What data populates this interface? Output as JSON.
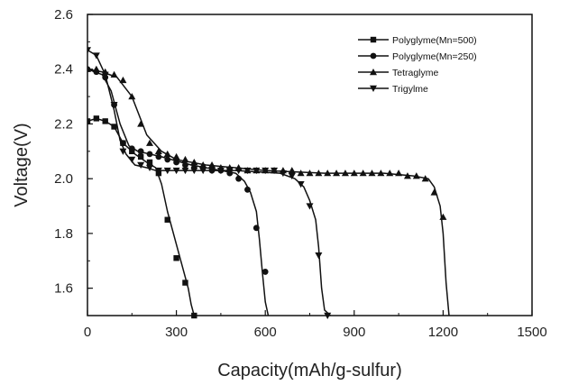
{
  "chart_data": {
    "type": "line",
    "xlabel": "Capacity(mAh/g-sulfur)",
    "ylabel": "Voltage(V)",
    "xlim": [
      0,
      1500
    ],
    "ylim": [
      1.5,
      2.6
    ],
    "x_ticks": [
      0,
      300,
      600,
      900,
      1200,
      1500
    ],
    "x_tick_labels": [
      "0",
      "300",
      "600",
      "900",
      "1200",
      "1500"
    ],
    "y_ticks": [
      1.6,
      1.8,
      2.0,
      2.2,
      2.4,
      2.6
    ],
    "y_tick_labels": [
      "1.6",
      "1.8",
      "2.0",
      "2.2",
      "2.4",
      "2.6"
    ],
    "grid": false,
    "legend_position": "top-right",
    "series": [
      {
        "name": "Polyglyme(Mn=500)",
        "marker": "square",
        "x": [
          0,
          30,
          60,
          90,
          120,
          160,
          200,
          230,
          250,
          270,
          300,
          320,
          340,
          350,
          360
        ],
        "y": [
          2.21,
          2.22,
          2.21,
          2.19,
          2.13,
          2.09,
          2.06,
          2.04,
          1.98,
          1.88,
          1.76,
          1.68,
          1.6,
          1.54,
          1.5
        ],
        "marker_x": [
          0,
          30,
          60,
          90,
          120,
          150,
          180,
          210,
          240,
          270,
          300,
          330,
          360
        ],
        "marker_y": [
          2.21,
          2.22,
          2.21,
          2.19,
          2.13,
          2.1,
          2.08,
          2.06,
          2.02,
          1.85,
          1.71,
          1.62,
          1.5
        ]
      },
      {
        "name": "Polyglyme(Mn=250)",
        "marker": "circle",
        "x": [
          0,
          50,
          80,
          110,
          140,
          170,
          250,
          350,
          450,
          500,
          530,
          550,
          570,
          580,
          590,
          600,
          610
        ],
        "y": [
          2.4,
          2.38,
          2.32,
          2.2,
          2.12,
          2.1,
          2.08,
          2.05,
          2.03,
          2.02,
          1.99,
          1.95,
          1.88,
          1.78,
          1.66,
          1.55,
          1.5
        ],
        "marker_x": [
          0,
          30,
          60,
          90,
          120,
          150,
          180,
          210,
          240,
          270,
          300,
          330,
          360,
          390,
          420,
          450,
          480,
          510,
          540,
          570,
          600
        ],
        "marker_y": [
          2.4,
          2.39,
          2.37,
          2.27,
          2.13,
          2.11,
          2.1,
          2.09,
          2.08,
          2.07,
          2.06,
          2.05,
          2.04,
          2.04,
          2.03,
          2.03,
          2.02,
          2.0,
          1.96,
          1.82,
          1.66
        ]
      },
      {
        "name": "Tetraglyme",
        "marker": "triangle-up",
        "x": [
          0,
          50,
          100,
          150,
          200,
          250,
          300,
          400,
          600,
          800,
          1000,
          1100,
          1150,
          1170,
          1190,
          1200,
          1210,
          1220
        ],
        "y": [
          2.4,
          2.39,
          2.37,
          2.3,
          2.16,
          2.1,
          2.07,
          2.05,
          2.03,
          2.02,
          2.02,
          2.01,
          2.0,
          1.97,
          1.9,
          1.8,
          1.62,
          1.5
        ],
        "marker_x": [
          0,
          30,
          60,
          90,
          120,
          150,
          180,
          210,
          240,
          270,
          300,
          330,
          360,
          390,
          420,
          450,
          480,
          510,
          540,
          570,
          600,
          630,
          660,
          690,
          720,
          750,
          780,
          810,
          840,
          870,
          900,
          930,
          960,
          990,
          1020,
          1050,
          1080,
          1110,
          1140,
          1170,
          1200
        ],
        "marker_y": [
          2.4,
          2.4,
          2.39,
          2.38,
          2.36,
          2.3,
          2.2,
          2.13,
          2.1,
          2.09,
          2.08,
          2.07,
          2.06,
          2.05,
          2.05,
          2.04,
          2.04,
          2.04,
          2.03,
          2.03,
          2.03,
          2.03,
          2.03,
          2.03,
          2.02,
          2.02,
          2.02,
          2.02,
          2.02,
          2.02,
          2.02,
          2.02,
          2.02,
          2.02,
          2.02,
          2.02,
          2.01,
          2.01,
          2.0,
          1.95,
          1.86
        ]
      },
      {
        "name": "Trigylme",
        "marker": "triangle-down",
        "x": [
          0,
          30,
          60,
          90,
          110,
          130,
          160,
          200,
          230,
          300,
          500,
          650,
          700,
          730,
          750,
          770,
          780,
          790,
          800,
          820
        ],
        "y": [
          2.47,
          2.45,
          2.38,
          2.25,
          2.14,
          2.09,
          2.05,
          2.04,
          2.03,
          2.03,
          2.03,
          2.02,
          2.0,
          1.97,
          1.92,
          1.85,
          1.75,
          1.6,
          1.52,
          1.5
        ],
        "marker_x": [
          0,
          30,
          60,
          90,
          120,
          150,
          180,
          210,
          240,
          270,
          300,
          330,
          360,
          390,
          420,
          450,
          480,
          510,
          540,
          570,
          600,
          630,
          660,
          690,
          720,
          750,
          780,
          810
        ],
        "marker_y": [
          2.47,
          2.45,
          2.38,
          2.27,
          2.1,
          2.07,
          2.05,
          2.04,
          2.03,
          2.03,
          2.03,
          2.03,
          2.03,
          2.03,
          2.03,
          2.03,
          2.03,
          2.03,
          2.03,
          2.03,
          2.03,
          2.03,
          2.02,
          2.01,
          1.98,
          1.9,
          1.72,
          1.5
        ]
      }
    ]
  },
  "colors": {
    "series": "#111111",
    "axis": "#111111",
    "text": "#222222"
  }
}
